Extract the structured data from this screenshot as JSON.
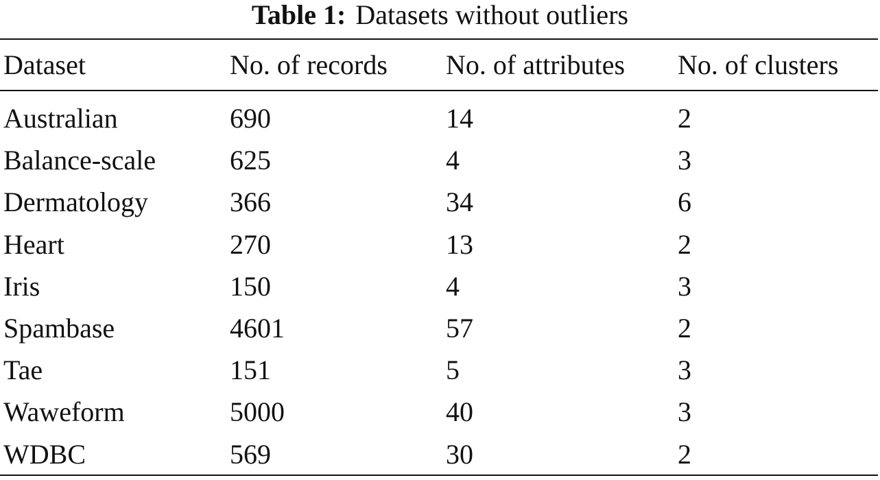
{
  "table": {
    "label": "Table 1:",
    "title": "Datasets without outliers",
    "header": [
      "Dataset",
      "No. of records",
      "No. of attributes",
      "No. of clusters"
    ],
    "rows": [
      [
        "Australian",
        690,
        14,
        2
      ],
      [
        "Balance-scale",
        625,
        4,
        3
      ],
      [
        "Dermatology",
        366,
        34,
        6
      ],
      [
        "Heart",
        270,
        13,
        2
      ],
      [
        "Iris",
        150,
        4,
        3
      ],
      [
        "Spambase",
        4601,
        57,
        2
      ],
      [
        "Tae",
        151,
        5,
        3
      ],
      [
        "Waweform",
        5000,
        40,
        3
      ],
      [
        "WDBC",
        569,
        30,
        2
      ]
    ]
  }
}
